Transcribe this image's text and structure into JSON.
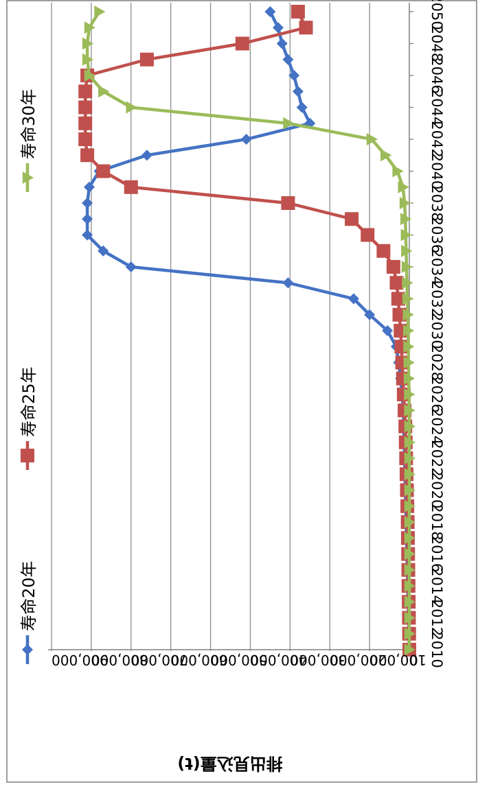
{
  "chart_data": {
    "type": "line",
    "orientation": "rotated-180",
    "ylabel": "排出見込量(t)",
    "xlim": [
      2010,
      2050
    ],
    "ylim": [
      0,
      900000
    ],
    "y_ticks": [
      "0",
      "100,000",
      "200,000",
      "300,000",
      "400,000",
      "500,000",
      "600,000",
      "700,000",
      "800,000",
      "900,000"
    ],
    "y_tick_values": [
      0,
      100000,
      200000,
      300000,
      400000,
      500000,
      600000,
      700000,
      800000,
      900000
    ],
    "x_ticks": [
      "2010",
      "2012",
      "2014",
      "2016",
      "2018",
      "2020",
      "2022",
      "2024",
      "2026",
      "2028",
      "2030",
      "2032",
      "2034",
      "2036",
      "2038",
      "2040",
      "2042",
      "2044",
      "2046",
      "2048",
      "2050"
    ],
    "x_tick_values": [
      2010,
      2012,
      2014,
      2016,
      2018,
      2020,
      2022,
      2024,
      2026,
      2028,
      2030,
      2032,
      2034,
      2036,
      2038,
      2040,
      2042,
      2044,
      2046,
      2048,
      2050
    ],
    "grid": true,
    "legend": "bottom",
    "x": [
      2010,
      2011,
      2012,
      2013,
      2014,
      2015,
      2016,
      2017,
      2018,
      2019,
      2020,
      2021,
      2022,
      2023,
      2024,
      2025,
      2026,
      2027,
      2028,
      2029,
      2030,
      2031,
      2032,
      2033,
      2034,
      2035,
      2036,
      2037,
      2038,
      2039,
      2040,
      2041,
      2042,
      2043,
      2044,
      2045,
      2046,
      2047,
      2048,
      2049,
      2050
    ],
    "series": [
      {
        "name": "寿命20年",
        "color": "#4472C4",
        "marker": "diamond",
        "values": [
          0,
          1000,
          2000,
          3000,
          4000,
          5000,
          6000,
          7000,
          8000,
          9000,
          10000,
          11000,
          12000,
          13000,
          14000,
          15000,
          18000,
          22000,
          27000,
          33000,
          55000,
          100000,
          140000,
          305000,
          700000,
          770000,
          810000,
          810000,
          810000,
          805000,
          780000,
          660000,
          410000,
          250000,
          270000,
          280000,
          290000,
          305000,
          320000,
          330000,
          350000
        ]
      },
      {
        "name": "寿命25年",
        "color": "#C0504D",
        "marker": "square",
        "values": [
          0,
          500,
          1000,
          1500,
          2000,
          2500,
          3000,
          3500,
          4000,
          5000,
          6000,
          7000,
          8000,
          9000,
          10000,
          12000,
          14000,
          16000,
          18000,
          20000,
          22000,
          25000,
          28000,
          32000,
          40000,
          65000,
          105000,
          145000,
          305000,
          700000,
          770000,
          810000,
          815000,
          815000,
          815000,
          815000,
          810000,
          660000,
          420000,
          260000,
          280000
        ]
      },
      {
        "name": "寿命30年",
        "color": "#9BBB59",
        "marker": "triangle",
        "values": [
          0,
          0,
          0,
          0,
          0,
          0,
          0,
          0,
          0,
          0,
          0,
          0,
          0,
          0,
          0,
          500,
          1000,
          1500,
          2000,
          2500,
          3000,
          4000,
          5000,
          6000,
          7000,
          8000,
          9000,
          10000,
          12000,
          16000,
          30000,
          60000,
          95000,
          305000,
          700000,
          770000,
          805000,
          810000,
          810000,
          805000,
          780000
        ]
      }
    ]
  }
}
